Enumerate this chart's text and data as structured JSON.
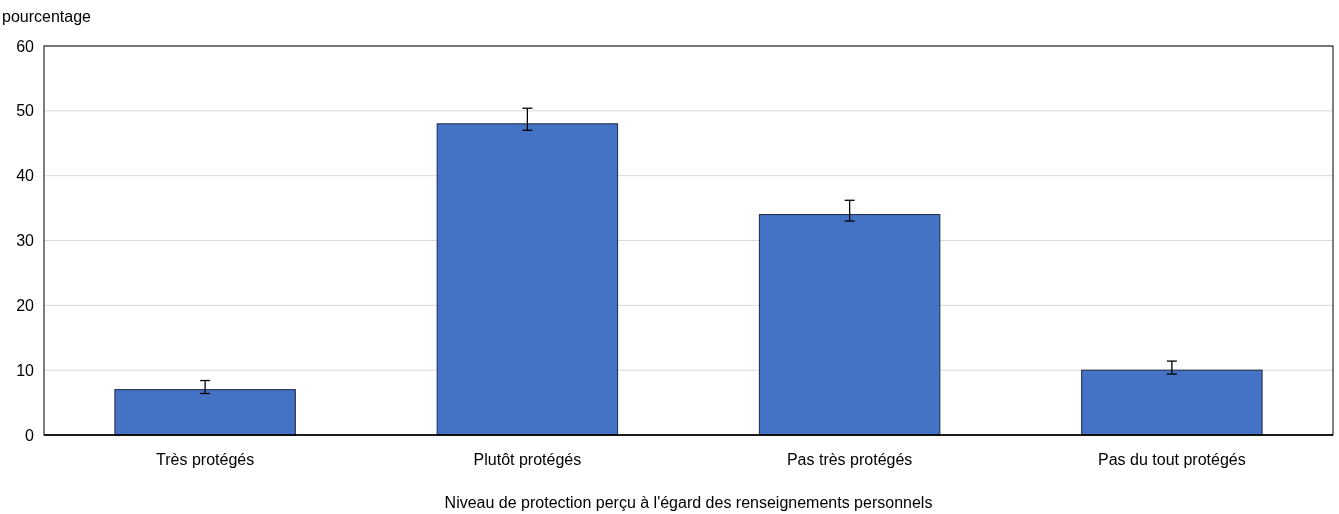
{
  "chart_data": {
    "type": "bar",
    "ylabel": "pourcentage",
    "xlabel": "Niveau de protection perçu à l'égard des renseignements personnels",
    "categories": [
      "Très protégés",
      "Plutôt protégés",
      "Pas très protégés",
      "Pas du tout protégés"
    ],
    "values": [
      7,
      48,
      34,
      10
    ],
    "errors": [
      [
        6.4,
        8.4
      ],
      [
        47,
        50.4
      ],
      [
        33,
        36.2
      ],
      [
        9.4,
        11.4
      ]
    ],
    "color": "#4472c4",
    "ylim": [
      0,
      60
    ],
    "yticks": [
      0,
      10,
      20,
      30,
      40,
      50,
      60
    ],
    "grid": "y"
  }
}
